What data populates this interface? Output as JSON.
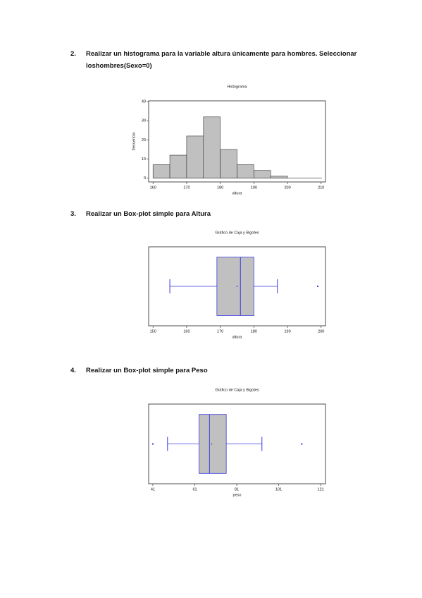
{
  "items": [
    {
      "number": "2.",
      "text": "Realizar un histograma para la variable altura únicamente para hombres. Seleccionar loshombres(Sexo=0)"
    },
    {
      "number": "3.",
      "text": "Realizar un Box-plot simple para Altura"
    },
    {
      "number": "4.",
      "text": "Realizar un Box-plot simple para Peso"
    }
  ],
  "chart_data": [
    {
      "type": "histogram",
      "title": "Histograma",
      "x_label": "altura",
      "y_label": "frecuencia",
      "bins": [
        160,
        165,
        170,
        175,
        180,
        185,
        190,
        195,
        200
      ],
      "values": [
        7,
        12,
        22,
        32,
        15,
        7,
        4,
        1
      ],
      "color": "#c0c0c0",
      "xlim": [
        158.7,
        211.3
      ],
      "xticks": [
        160,
        170,
        180,
        190,
        200,
        210
      ],
      "ylim": [
        -2,
        40.4
      ],
      "yticks": [
        0,
        10,
        20,
        30,
        40
      ]
    },
    {
      "type": "box",
      "title": "Gráfico de Caja y Bigotes",
      "x_label": "altura",
      "color": "#c0c0c0",
      "line_color": "#3a3ae0",
      "whisker_low": 155,
      "q1": 169,
      "median": 176,
      "q3": 180,
      "whisker_high": 187,
      "mean": 175,
      "outliers": [
        199
      ],
      "xlim": [
        148.7,
        201.3
      ],
      "xticks": [
        150,
        160,
        170,
        180,
        190,
        200
      ]
    },
    {
      "type": "box",
      "title": "Gráfico de Caja y Bigotes",
      "x_label": "peso",
      "color": "#c0c0c0",
      "line_color": "#3a3ae0",
      "whisker_low": 48,
      "q1": 63,
      "median": 68,
      "q3": 76,
      "whisker_high": 93,
      "mean": 69,
      "outliers": [
        41,
        112
      ],
      "xlim": [
        39,
        123.3
      ],
      "xticks": [
        41,
        61,
        81,
        101,
        121
      ]
    }
  ]
}
